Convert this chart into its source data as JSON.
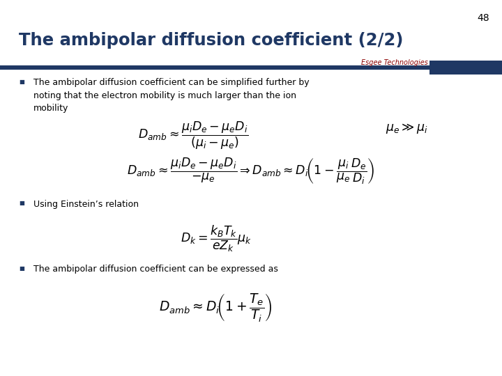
{
  "page_number": "48",
  "title": "The ambipolar diffusion coefficient (2/2)",
  "title_color": "#1F3864",
  "background_color": "#ffffff",
  "separator_color": "#1F3864",
  "logo_text": "Esgee Technologies",
  "logo_color": "#8B0000",
  "bullet_color": "#1F3864",
  "text_color": "#000000",
  "bullet_char": "§"
}
